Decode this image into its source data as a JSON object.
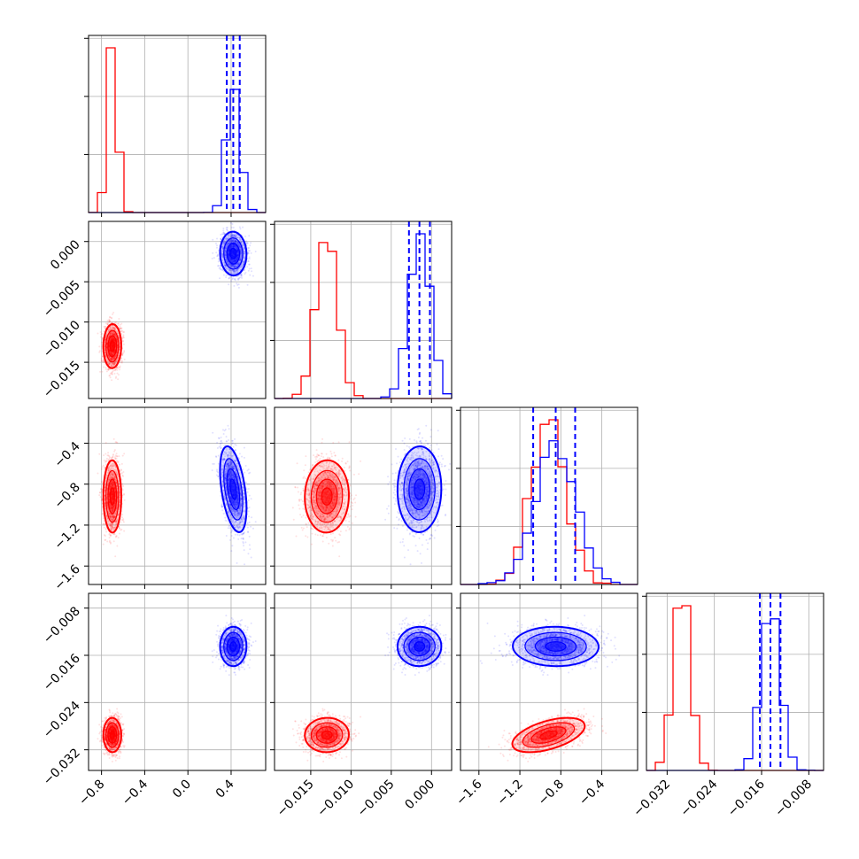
{
  "chart_data": {
    "type": "corner",
    "parameters": [
      {
        "range": [
          -0.92,
          0.72
        ],
        "ticks": [
          -0.8,
          -0.4,
          0.0,
          0.4
        ],
        "tick_labels": [
          "−0.8",
          "−0.4",
          "0.0",
          "0.4"
        ]
      },
      {
        "range": [
          -0.0195,
          0.0025
        ],
        "ticks": [
          -0.015,
          -0.01,
          -0.005,
          0.0
        ],
        "tick_labels": [
          "−0.015",
          "−0.010",
          "−0.005",
          "0.000"
        ]
      },
      {
        "range": [
          -1.78,
          -0.05
        ],
        "ticks": [
          -1.6,
          -1.2,
          -0.8,
          -0.4
        ],
        "tick_labels": [
          "−1.6",
          "−1.2",
          "−0.8",
          "−0.4"
        ]
      },
      {
        "range": [
          -0.0355,
          -0.0055
        ],
        "ticks": [
          -0.032,
          -0.024,
          -0.016,
          -0.008
        ],
        "tick_labels": [
          "−0.032",
          "−0.024",
          "−0.016",
          "−0.008"
        ]
      }
    ],
    "series": [
      {
        "color": "#ff0000",
        "mean": [
          -0.7,
          -0.013,
          -0.92,
          -0.0295
        ],
        "sd": [
          0.04,
          0.0013,
          0.17,
          0.0014
        ],
        "corr_2_3": 0.55,
        "quantile_lines": false
      },
      {
        "color": "#0000ff",
        "mean": [
          0.42,
          -0.0015,
          -0.85,
          -0.0145
        ],
        "sd": [
          0.06,
          0.0013,
          0.2,
          0.0016
        ],
        "corr_0_2": -0.45,
        "quantiles": [
          [
            0.36,
            0.42,
            0.48
          ],
          [
            -0.0028,
            -0.0015,
            -0.0002
          ],
          [
            -1.07,
            -0.85,
            -0.66
          ],
          [
            -0.0163,
            -0.0145,
            -0.0128
          ]
        ],
        "quantile_lines": true
      }
    ],
    "histogram_y_ticks": 3,
    "grid": true
  }
}
